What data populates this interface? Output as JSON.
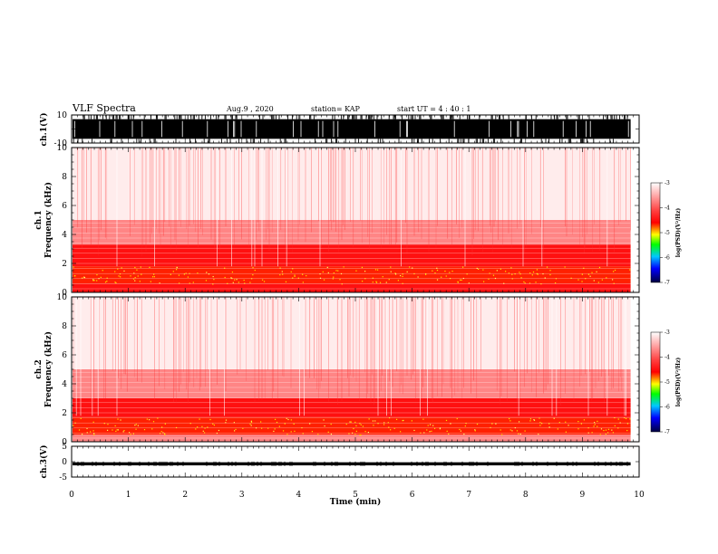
{
  "header": {
    "title": "VLF Spectra",
    "date": "Aug.9 , 2020",
    "station": "station= KAP",
    "start": "start UT = 4 : 40 : 1"
  },
  "chart_data": [
    {
      "type": "line",
      "id": "ch1_waveform",
      "ylabel": "ch.1(V)",
      "ylim": [
        -10,
        10
      ],
      "yticks": [
        "10",
        "-10"
      ],
      "xlim": [
        0,
        10
      ],
      "x_data_end": 9.85,
      "envelope": [
        -7,
        7
      ]
    },
    {
      "type": "heatmap",
      "id": "ch1_spectrogram",
      "ylabel": "ch.1\nFrequency (kHz)",
      "ylim": [
        0,
        10
      ],
      "yticks": [
        "0",
        "2",
        "4",
        "6",
        "8",
        "10"
      ],
      "xlim": [
        0,
        10
      ],
      "x_data_end": 9.85,
      "bands": [
        {
          "f": [
            0,
            0.6
          ],
          "level": "-3.5"
        },
        {
          "f": [
            0.6,
            1.8
          ],
          "level": "-4.3"
        },
        {
          "f": [
            1.8,
            3.3
          ],
          "level": "-3.5"
        },
        {
          "f": [
            3.3,
            5.0
          ],
          "level": "-3.2"
        },
        {
          "f": [
            5.0,
            10.0
          ],
          "level": "-3.0"
        }
      ],
      "colorbar": {
        "label": "log(PSD)(V²/Hz)",
        "ticks": [
          "-3",
          "-4",
          "-5",
          "-6",
          "-7"
        ]
      }
    },
    {
      "type": "heatmap",
      "id": "ch2_spectrogram",
      "ylabel": "ch.2\nFrequency (kHz)",
      "ylim": [
        0,
        10
      ],
      "yticks": [
        "0",
        "2",
        "4",
        "6",
        "8",
        "10"
      ],
      "xlim": [
        0,
        10
      ],
      "x_data_end": 9.85,
      "bands": [
        {
          "f": [
            0,
            0.5
          ],
          "level": "-3.3"
        },
        {
          "f": [
            0.5,
            1.7
          ],
          "level": "-4.4"
        },
        {
          "f": [
            1.7,
            3.0
          ],
          "level": "-3.6"
        },
        {
          "f": [
            3.0,
            5.0
          ],
          "level": "-3.1"
        },
        {
          "f": [
            5.0,
            10.0
          ],
          "level": "-3.0"
        }
      ],
      "colorbar": {
        "label": "log(PSD)(V²/Hz)",
        "ticks": [
          "-3",
          "-4",
          "-5",
          "-6",
          "-7"
        ]
      }
    },
    {
      "type": "line",
      "id": "ch3_waveform",
      "ylabel": "ch.3(V)",
      "ylim": [
        -5,
        5
      ],
      "yticks": [
        "5",
        "0",
        "-5"
      ],
      "xlim": [
        0,
        10
      ],
      "x_data_end": 9.85,
      "envelope": [
        -1.2,
        -0.2
      ]
    }
  ],
  "xaxis": {
    "label": "Time (min)",
    "ticks": [
      "0",
      "1",
      "2",
      "3",
      "4",
      "5",
      "6",
      "7",
      "8",
      "9",
      "10"
    ]
  }
}
